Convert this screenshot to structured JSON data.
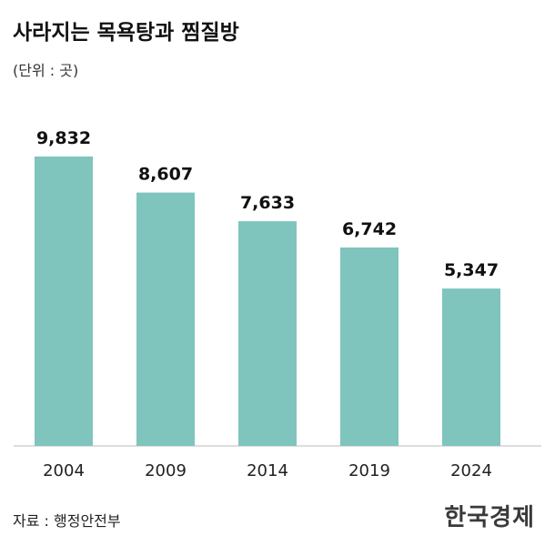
{
  "title": "사라지는 목욕탕과 찜질방",
  "unit_label": "(단위 : 곳)",
  "source": "자료 : 행정안전부",
  "logo": "한국경제",
  "colors": {
    "bar": "#7fc4bd",
    "axis": "#bbbbbb"
  },
  "chart_data": {
    "type": "bar",
    "categories": [
      "2004",
      "2009",
      "2014",
      "2019",
      "2024"
    ],
    "values": [
      9832,
      8607,
      7633,
      6742,
      5347
    ],
    "value_labels": [
      "9,832",
      "8,607",
      "7,633",
      "6,742",
      "5,347"
    ],
    "title": "사라지는 목욕탕과 찜질방",
    "xlabel": "",
    "ylabel": "",
    "ylim": [
      0,
      9832
    ],
    "grid": false,
    "legend": "none"
  }
}
